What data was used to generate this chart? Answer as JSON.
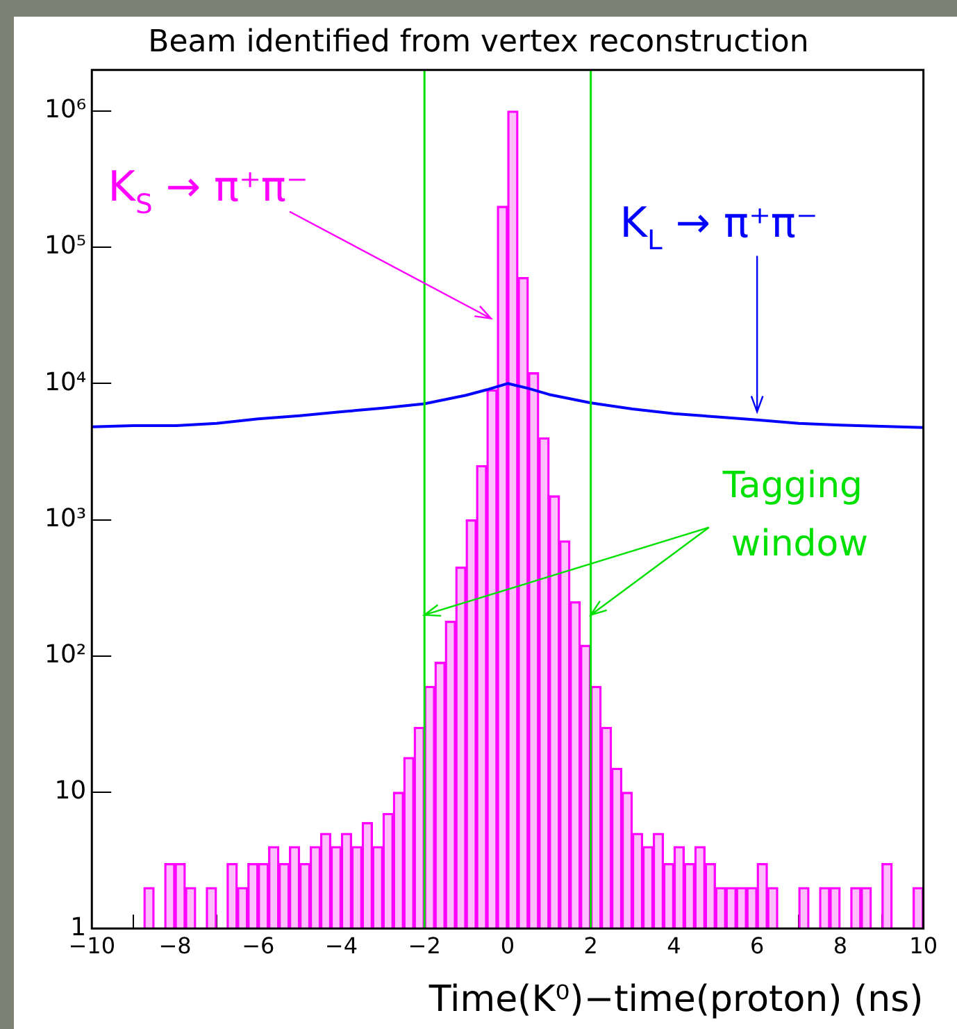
{
  "chart_data": {
    "type": "bar",
    "title": "Beam identified from vertex reconstruction",
    "xlabel": "Time(K⁰)−time(proton) (ns)",
    "x": [
      -8.625,
      -8.375,
      -8.125,
      -7.875,
      -7.625,
      -7.375,
      -7.125,
      -6.875,
      -6.625,
      -6.375,
      -6.125,
      -5.875,
      -5.625,
      -5.375,
      -5.125,
      -4.875,
      -4.625,
      -4.375,
      -4.125,
      -3.875,
      -3.625,
      -3.375,
      -3.125,
      -2.875,
      -2.625,
      -2.375,
      -2.125,
      -1.875,
      -1.625,
      -1.375,
      -1.125,
      -0.875,
      -0.625,
      -0.375,
      -0.125,
      0.125,
      0.375,
      0.625,
      0.875,
      1.125,
      1.375,
      1.625,
      1.875,
      2.125,
      2.375,
      2.625,
      2.875,
      3.125,
      3.375,
      3.625,
      3.875,
      4.125,
      4.375,
      4.625,
      4.875,
      5.125,
      5.375,
      5.625,
      5.875,
      6.125,
      6.375,
      6.625,
      6.875,
      7.125,
      7.375,
      7.625,
      7.875,
      8.125,
      8.375,
      8.625,
      8.875,
      9.125,
      9.375,
      9.625,
      9.875
    ],
    "values": [
      2,
      null,
      3,
      3,
      2,
      null,
      2,
      null,
      3,
      2,
      3,
      3,
      4,
      3,
      4,
      3,
      4,
      5,
      4,
      5,
      4,
      6,
      4,
      7,
      10,
      18,
      30,
      60,
      90,
      180,
      450,
      1000,
      2500,
      9000,
      200000,
      1000000,
      60000,
      12000,
      4000,
      1500,
      700,
      250,
      120,
      60,
      30,
      15,
      10,
      5,
      4,
      5,
      3,
      4,
      3,
      4,
      3,
      2,
      2,
      2,
      2,
      3,
      2,
      null,
      null,
      2,
      null,
      2,
      2,
      null,
      2,
      2,
      null,
      3,
      null,
      null,
      2
    ],
    "color": "#ff00ff",
    "series": [
      {
        "type": "line",
        "name": "K$_{L}$ → π⁺π⁻",
        "color": "#0000ff",
        "x": [
          -10,
          -9,
          -8,
          -7,
          -6,
          -5,
          -4,
          -3,
          -2,
          -1,
          -0.5,
          0,
          0.5,
          1,
          2,
          3,
          4,
          5,
          6,
          7,
          8,
          9,
          10
        ],
        "values": [
          4800,
          4900,
          4900,
          5100,
          5500,
          5800,
          6200,
          6600,
          7100,
          8200,
          9000,
          10000,
          9200,
          8300,
          7200,
          6500,
          6000,
          5700,
          5400,
          5100,
          4950,
          4850,
          4750
        ]
      }
    ],
    "log": "y",
    "xlim": [
      -10,
      10
    ],
    "xticks": [
      -10,
      -8,
      -6,
      -4,
      -2,
      0,
      2,
      4,
      6,
      8,
      10
    ],
    "ylim": [
      1,
      2000000
    ],
    "yticks": [
      1,
      10,
      {
        "value": 100,
        "label": "10²"
      },
      {
        "value": 1000,
        "label": "10³"
      },
      {
        "value": 10000,
        "label": "10⁴"
      },
      {
        "value": 100000,
        "label": "10⁵"
      },
      {
        "value": 1000000,
        "label": "10⁶"
      }
    ],
    "ref_lines": [
      {
        "axis": "x",
        "value": -2,
        "color": "#00e000"
      },
      {
        "axis": "x",
        "value": 2,
        "color": "#00e000"
      }
    ],
    "annotations": [
      {
        "text": "K$_{S}$ → π⁺π⁻",
        "x": -0.4,
        "y": 30000
      },
      {
        "text": "Tagging window",
        "x": 2,
        "y": 200
      }
    ],
    "grid": false,
    "legend": false
  }
}
